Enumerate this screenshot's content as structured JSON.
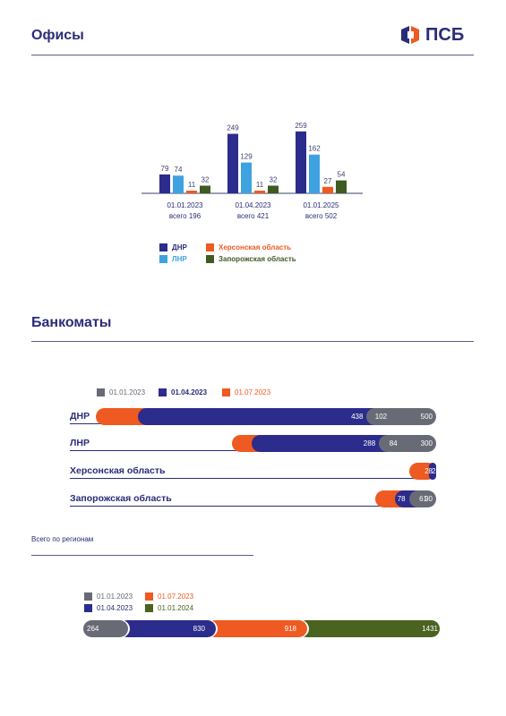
{
  "offices": {
    "title": "Офисы",
    "logo_text": "ПСБ",
    "chart_data": {
      "type": "bar",
      "categories": [
        "01.01.2023",
        "01.04.2023",
        "01.01.2025"
      ],
      "category_totals": [
        "всего 196",
        "всего 421",
        "всего 502"
      ],
      "series": [
        {
          "name": "ДНР",
          "color": "#2b2c8c",
          "values": [
            79,
            249,
            259
          ]
        },
        {
          "name": "ЛНР",
          "color": "#3fa2e0",
          "values": [
            74,
            129,
            162
          ]
        },
        {
          "name": "Херсонская область",
          "color": "#ee5a21",
          "values": [
            11,
            11,
            27
          ]
        },
        {
          "name": "Запорожская область",
          "color": "#3f5a22",
          "values": [
            32,
            32,
            54
          ]
        }
      ],
      "legend_placement": "bottom-left"
    }
  },
  "atms": {
    "title": "Банкоматы",
    "chart_data": {
      "type": "bar",
      "orientation": "horizontal-overlapping",
      "legend": [
        {
          "name": "01.01.2023",
          "color": "#686b75"
        },
        {
          "name": "01.04.2023",
          "color": "#2b2c8c"
        },
        {
          "name": "01.07.2023",
          "color": "#ee5a21"
        }
      ],
      "categories": [
        "ДНР",
        "ЛНР",
        "Херсонская область",
        "Запорожская область"
      ],
      "series": [
        {
          "name": "01.01.2023",
          "values": [
            102,
            84,
            17,
            61
          ]
        },
        {
          "name": "01.04.2023",
          "values": [
            438,
            288,
            26,
            78
          ]
        },
        {
          "name": "01.07.2023",
          "values": [
            500,
            300,
            28,
            90
          ]
        }
      ]
    }
  },
  "totals": {
    "label": "Всего по регионам",
    "chart_data": {
      "type": "bar",
      "orientation": "horizontal-stacked",
      "legend": [
        {
          "name": "01.01.2023",
          "color": "#686b75"
        },
        {
          "name": "01.07.2023",
          "color": "#ee5a21"
        },
        {
          "name": "01.04.2023",
          "color": "#2b2c8c"
        },
        {
          "name": "01.01.2024",
          "color": "#4a6320"
        }
      ],
      "segments": [
        {
          "name": "01.01.2023",
          "value": 264,
          "color": "#686b75"
        },
        {
          "name": "01.04.2023",
          "value": 830,
          "color": "#2b2c8c"
        },
        {
          "name": "01.07.2023",
          "value": 918,
          "color": "#ee5a21"
        },
        {
          "name": "01.01.2024",
          "value": 1431,
          "color": "#4a6320"
        }
      ]
    }
  }
}
